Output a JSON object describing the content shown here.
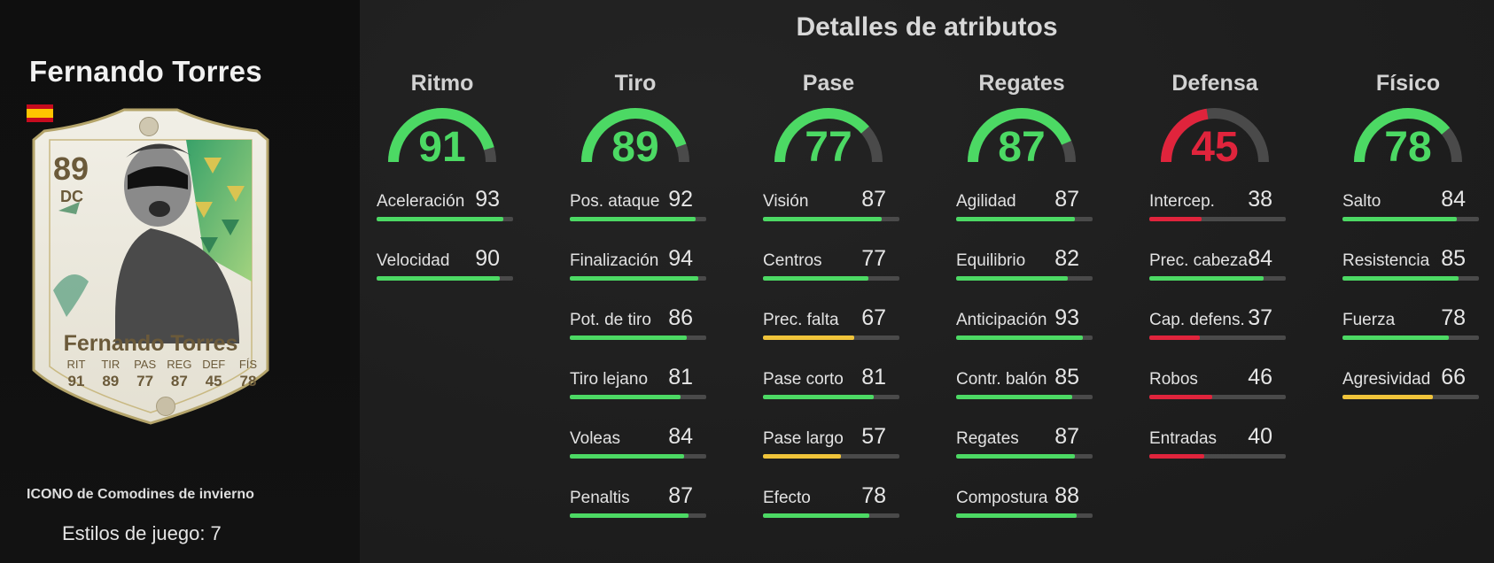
{
  "player": {
    "name": "Fernando Torres",
    "card": {
      "rating": "89",
      "position": "DC",
      "name": "Fernando Torres",
      "stats": [
        {
          "label": "RIT",
          "value": "91"
        },
        {
          "label": "TIR",
          "value": "89"
        },
        {
          "label": "PAS",
          "value": "77"
        },
        {
          "label": "REG",
          "value": "87"
        },
        {
          "label": "DEF",
          "value": "45"
        },
        {
          "label": "FÍS",
          "value": "78"
        }
      ],
      "flag_icon": "spain-flag-icon",
      "club_icon": "icons-badge-icon"
    },
    "subtitle": "ICONO de Comodines de invierno",
    "playstyles": "Estilos de juego: 7"
  },
  "details": {
    "title": "Detalles de atributos",
    "colors": {
      "green": "#4cd964",
      "yellow": "#f0c43a",
      "red": "#e0243c",
      "track": "#4a4a4a"
    },
    "categories": [
      {
        "title": "Ritmo",
        "value": 91,
        "color": "green",
        "attributes": [
          {
            "label": "Aceleración",
            "value": 93,
            "color": "green"
          },
          {
            "label": "Velocidad",
            "value": 90,
            "color": "green"
          }
        ]
      },
      {
        "title": "Tiro",
        "value": 89,
        "color": "green",
        "attributes": [
          {
            "label": "Pos. ataque",
            "value": 92,
            "color": "green"
          },
          {
            "label": "Finalización",
            "value": 94,
            "color": "green"
          },
          {
            "label": "Pot. de tiro",
            "value": 86,
            "color": "green"
          },
          {
            "label": "Tiro lejano",
            "value": 81,
            "color": "green"
          },
          {
            "label": "Voleas",
            "value": 84,
            "color": "green"
          },
          {
            "label": "Penaltis",
            "value": 87,
            "color": "green"
          }
        ]
      },
      {
        "title": "Pase",
        "value": 77,
        "color": "green",
        "attributes": [
          {
            "label": "Visión",
            "value": 87,
            "color": "green"
          },
          {
            "label": "Centros",
            "value": 77,
            "color": "green"
          },
          {
            "label": "Prec. falta",
            "value": 67,
            "color": "yellow"
          },
          {
            "label": "Pase corto",
            "value": 81,
            "color": "green"
          },
          {
            "label": "Pase largo",
            "value": 57,
            "color": "yellow"
          },
          {
            "label": "Efecto",
            "value": 78,
            "color": "green"
          }
        ]
      },
      {
        "title": "Regates",
        "value": 87,
        "color": "green",
        "attributes": [
          {
            "label": "Agilidad",
            "value": 87,
            "color": "green"
          },
          {
            "label": "Equilibrio",
            "value": 82,
            "color": "green"
          },
          {
            "label": "Anticipación",
            "value": 93,
            "color": "green"
          },
          {
            "label": "Contr. balón",
            "value": 85,
            "color": "green"
          },
          {
            "label": "Regates",
            "value": 87,
            "color": "green"
          },
          {
            "label": "Compostura",
            "value": 88,
            "color": "green"
          }
        ]
      },
      {
        "title": "Defensa",
        "value": 45,
        "color": "red",
        "attributes": [
          {
            "label": "Intercep.",
            "value": 38,
            "color": "red"
          },
          {
            "label": "Prec. cabeza",
            "value": 84,
            "color": "green"
          },
          {
            "label": "Cap. defens.",
            "value": 37,
            "color": "red"
          },
          {
            "label": "Robos",
            "value": 46,
            "color": "red"
          },
          {
            "label": "Entradas",
            "value": 40,
            "color": "red"
          }
        ]
      },
      {
        "title": "Físico",
        "value": 78,
        "color": "green",
        "attributes": [
          {
            "label": "Salto",
            "value": 84,
            "color": "green"
          },
          {
            "label": "Resistencia",
            "value": 85,
            "color": "green"
          },
          {
            "label": "Fuerza",
            "value": 78,
            "color": "green"
          },
          {
            "label": "Agresividad",
            "value": 66,
            "color": "yellow"
          }
        ]
      }
    ]
  }
}
